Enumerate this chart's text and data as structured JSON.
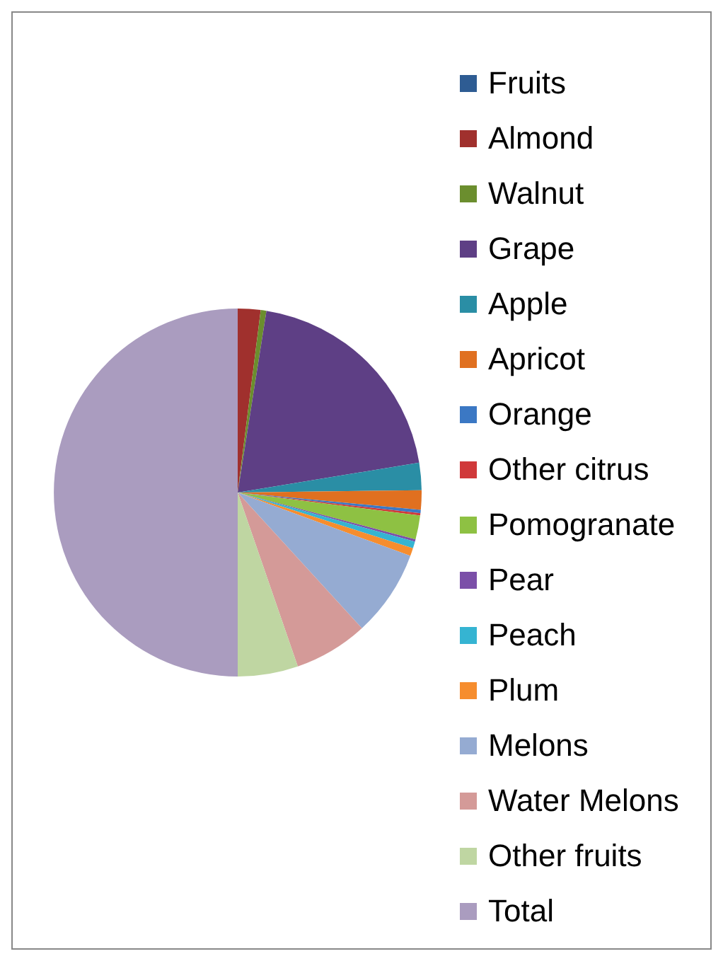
{
  "chart_data": {
    "type": "pie",
    "categories": [
      "Fruits",
      "Almond",
      "Walnut",
      "Grape",
      "Apple",
      "Apricot",
      "Orange",
      "Other citrus",
      "Pomogranate",
      "Pear",
      "Peach",
      "Plum",
      "Melons",
      "Water Melons",
      "Other fruits",
      "Total"
    ],
    "values": [
      0,
      2.0,
      0.5,
      19.9,
      2.4,
      1.7,
      0.3,
      0.2,
      2.1,
      0.2,
      0.6,
      0.7,
      7.6,
      6.5,
      5.3,
      50
    ],
    "colors": [
      "#2e5c93",
      "#a0302d",
      "#6b8e2e",
      "#5e3f85",
      "#2a8ea5",
      "#e07020",
      "#3b78c4",
      "#d0393a",
      "#8ec143",
      "#7b4fa8",
      "#35b4d2",
      "#f68d2e",
      "#95abd2",
      "#d49a98",
      "#bfd6a2",
      "#aa9cbf"
    ],
    "legend": "right"
  }
}
